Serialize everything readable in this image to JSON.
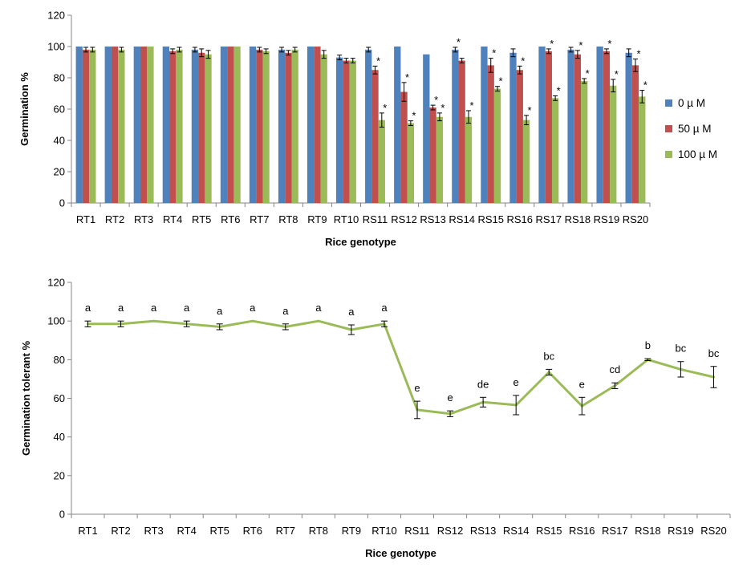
{
  "chart_data": [
    {
      "type": "bar",
      "xlabel": "Rice genotype",
      "ylabel": "Germination %",
      "ylim": [
        0,
        120
      ],
      "yticks": [
        0,
        20,
        40,
        60,
        80,
        100,
        120
      ],
      "grid": false,
      "legend_position": "right",
      "categories": [
        "RT1",
        "RT2",
        "RT3",
        "RT4",
        "RT5",
        "RT6",
        "RT7",
        "RT8",
        "RT9",
        "RT10",
        "RS11",
        "RS12",
        "RS13",
        "RS14",
        "RS15",
        "RS16",
        "RS17",
        "RS18",
        "RS19",
        "RS20"
      ],
      "series": [
        {
          "name": "0 µ M",
          "color": "#4F81BD",
          "values": [
            100,
            100,
            100,
            100,
            98,
            100,
            100,
            98,
            100,
            93,
            98,
            100,
            95,
            98,
            100,
            96,
            100,
            98,
            100,
            96
          ],
          "errors": [
            0,
            0,
            0,
            0,
            1.5,
            0,
            0,
            1.5,
            0,
            1.5,
            1.5,
            0,
            0,
            1.5,
            0,
            2.5,
            0,
            1.5,
            0,
            2.5
          ],
          "significant": [
            false,
            false,
            false,
            false,
            false,
            false,
            false,
            false,
            false,
            false,
            false,
            false,
            false,
            true,
            false,
            false,
            false,
            false,
            false,
            false
          ]
        },
        {
          "name": "50 µ M",
          "color": "#C0504D",
          "values": [
            98,
            100,
            100,
            97,
            96,
            100,
            98,
            96,
            100,
            91,
            85,
            71,
            61,
            91,
            88,
            85,
            97,
            95,
            97,
            88
          ],
          "errors": [
            1.5,
            0,
            0,
            1.5,
            2.5,
            0,
            1.5,
            1.5,
            0,
            1.5,
            2.5,
            6,
            1.5,
            1.5,
            4.5,
            2.5,
            1.5,
            2.5,
            1.5,
            4
          ],
          "significant": [
            false,
            false,
            false,
            false,
            false,
            false,
            false,
            false,
            false,
            false,
            true,
            true,
            true,
            false,
            true,
            true,
            true,
            true,
            true,
            true
          ]
        },
        {
          "name": "100 µ M",
          "color": "#9BBB59",
          "values": [
            98,
            98,
            100,
            98,
            95,
            100,
            97,
            98,
            95,
            91,
            53,
            51,
            55,
            55,
            73,
            53,
            67,
            78,
            75,
            68
          ],
          "errors": [
            1.5,
            1.5,
            0,
            1.5,
            2.5,
            0,
            1.5,
            1.5,
            2.5,
            1.5,
            4.5,
            1.5,
            2.5,
            4,
            1.5,
            3,
            1.5,
            1.5,
            4,
            4
          ],
          "significant": [
            false,
            false,
            false,
            false,
            false,
            false,
            false,
            false,
            false,
            false,
            true,
            true,
            true,
            true,
            true,
            true,
            true,
            true,
            true,
            true
          ]
        }
      ],
      "annotation_symbol": "*"
    },
    {
      "type": "line",
      "xlabel": "Rice genotype",
      "ylabel": "Germination tolerant %",
      "ylim": [
        0,
        120
      ],
      "yticks": [
        0,
        20,
        40,
        60,
        80,
        100,
        120
      ],
      "grid": false,
      "categories": [
        "RT1",
        "RT2",
        "RT3",
        "RT4",
        "RT5",
        "RT6",
        "RT7",
        "RT8",
        "RT9",
        "RT10",
        "RS11",
        "RS12",
        "RS13",
        "RS14",
        "RS15",
        "RS16",
        "RS17",
        "RS18",
        "RS19",
        "RS20"
      ],
      "series": [
        {
          "name": "Germination tolerant %",
          "color": "#9BBB59",
          "values": [
            98.5,
            98.5,
            100,
            98.5,
            97,
            100,
            97,
            100,
            95.5,
            98.5,
            54,
            52,
            58,
            56.5,
            73.5,
            56,
            66.5,
            80,
            75,
            71
          ],
          "errors": [
            1.5,
            1.5,
            0,
            1.5,
            1.5,
            0,
            1.5,
            0,
            2.5,
            1.5,
            4.5,
            1.5,
            2.5,
            5,
            1.5,
            4.5,
            1.5,
            0.5,
            4,
            5.5
          ],
          "letters": [
            "a",
            "a",
            "a",
            "a",
            "a",
            "a",
            "a",
            "a",
            "a",
            "a",
            "e",
            "e",
            "de",
            "e",
            "bc",
            "e",
            "cd",
            "b",
            "bc",
            "bc"
          ]
        }
      ]
    }
  ]
}
